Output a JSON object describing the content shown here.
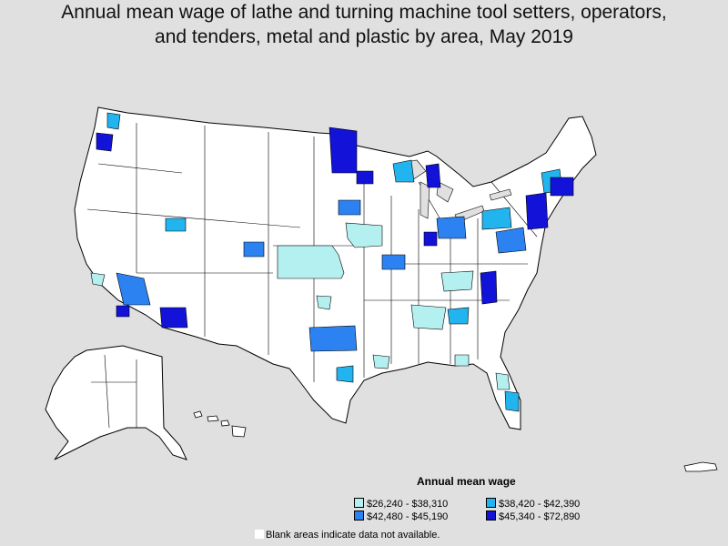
{
  "title": {
    "line1": "Annual mean wage of lathe and turning machine tool setters, operators,",
    "line2": "and tenders, metal and plastic by area, May 2019"
  },
  "legend": {
    "title": "Annual mean wage",
    "items": [
      {
        "label": "$26,240 - $38,310",
        "color": "#b4f0f0"
      },
      {
        "label": "$38,420 - $42,390",
        "color": "#22b4ee"
      },
      {
        "label": "$42,480 - $45,190",
        "color": "#2c82f0"
      },
      {
        "label": "$45,340 - $72,890",
        "color": "#1212d8"
      }
    ]
  },
  "footnote": "Blank areas indicate data not available.",
  "colors": {
    "background": "#e0e0e0",
    "land": "#ffffff",
    "border": "#000000"
  }
}
